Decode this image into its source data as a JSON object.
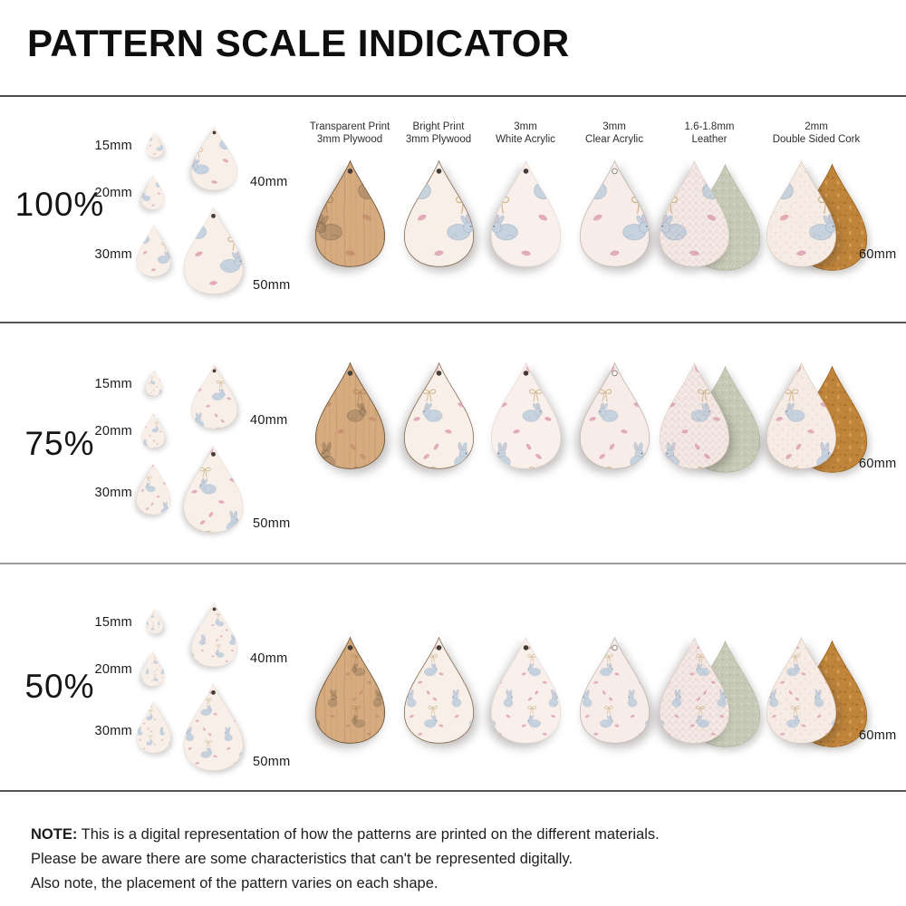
{
  "title": "PATTERN SCALE INDICATOR",
  "rows": [
    {
      "scale_label": "100%",
      "scale": 100
    },
    {
      "scale_label": "75%",
      "scale": 75
    },
    {
      "scale_label": "50%",
      "scale": 50
    }
  ],
  "size_labels": [
    "15mm",
    "20mm",
    "30mm",
    "40mm",
    "50mm"
  ],
  "large_size_label": "60mm",
  "columns": [
    {
      "line1": "Transparent Print",
      "line2": "3mm Plywood",
      "material": "plywood_transparent"
    },
    {
      "line1": "Bright Print",
      "line2": "3mm Plywood",
      "material": "plywood_bright"
    },
    {
      "line1": "3mm",
      "line2": "White Acrylic",
      "material": "white_acrylic"
    },
    {
      "line1": "3mm",
      "line2": "Clear Acrylic",
      "material": "clear_acrylic"
    },
    {
      "line1": "1.6-1.8mm",
      "line2": "Leather",
      "material": "leather"
    },
    {
      "line1": "2mm",
      "line2": "Double Sided Cork",
      "material": "cork"
    }
  ],
  "note": {
    "label": "NOTE:",
    "lines": [
      "This is a digital representation of how the patterns are printed on the different materials.",
      "Please be aware there are some characteristics that can't be represented digitally.",
      "Also note, the placement of the pattern varies on each shape."
    ]
  },
  "colors": {
    "pattern_base": "#f8efe9",
    "bunny": "#c7d2df",
    "bunny_outline": "#a2b2c6",
    "ear_inner": "#e3c2cb",
    "eye": "#4a4a55",
    "petal": "#e6b0bd",
    "petal_outline": "#d194a6",
    "bow": "#c8ad7c",
    "wood": "#d6ab80",
    "white_acrylic": "#f9efeb",
    "clear_acrylic": "#f7ece8",
    "leather_front": "#f5e9e5",
    "suede_back": "#c5c9b5",
    "cork_front": "#f6ebe5",
    "cork_back": "#c0853a",
    "divider": "#4c4c4c"
  }
}
